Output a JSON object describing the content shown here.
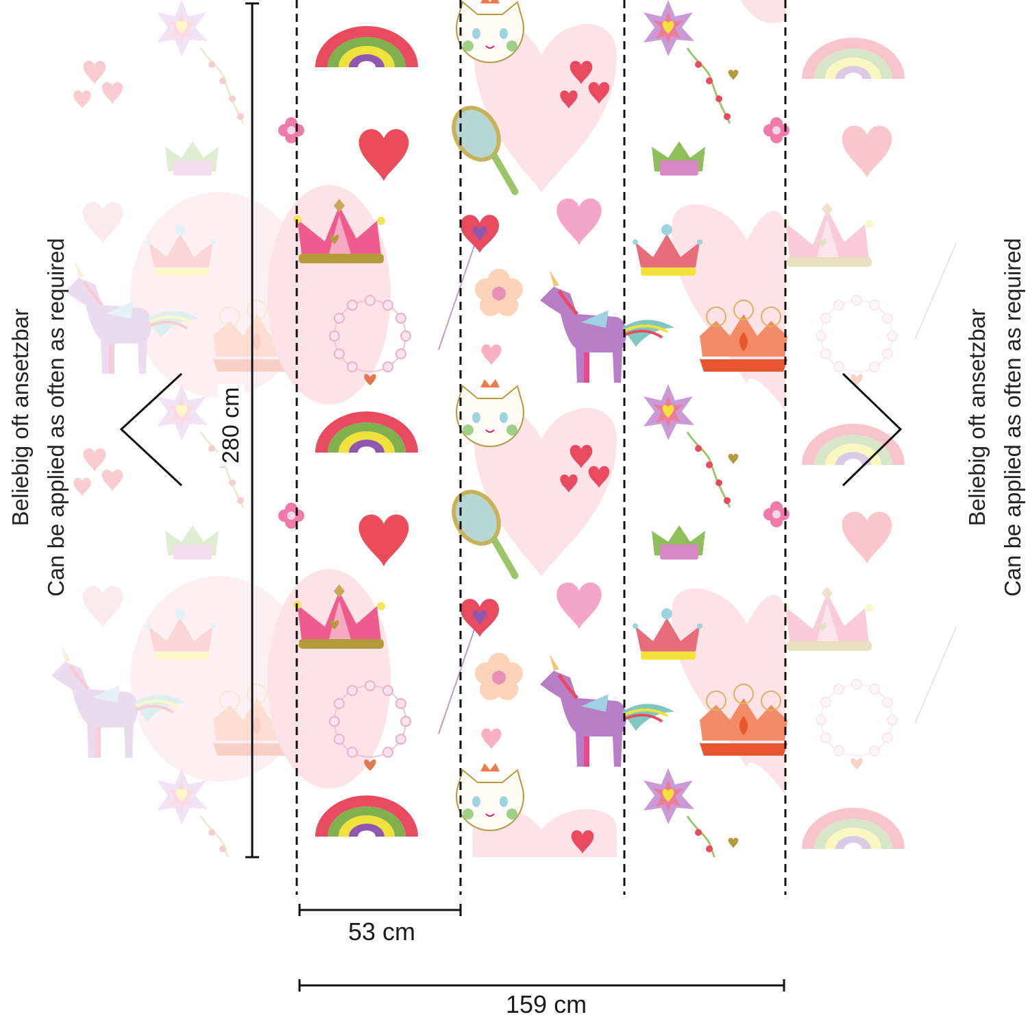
{
  "dimensions": {
    "height": "280 cm",
    "panel_width": "53 cm",
    "total_width": "159 cm"
  },
  "repeat_note": {
    "de": "Beliebig oft ansetzbar",
    "en": "Can be applied as often as required"
  },
  "panels_count": 3,
  "icons": [
    "rainbow-icon",
    "heart-icon",
    "crown-icon",
    "flower-icon",
    "pearl-necklace-icon",
    "cat-face-icon",
    "hand-mirror-icon",
    "heart-wand-icon",
    "unicorn-icon",
    "star-wand-icon",
    "tiara-icon"
  ],
  "colors": {
    "background": "#ffffff",
    "line": "#111111",
    "heart_red": "#ea4c5c",
    "pink": "#f06a99",
    "light_pink": "#fde3e8",
    "gold": "#b39a3a",
    "purple": "#9b59b6",
    "green": "#8fbf5a",
    "yellow": "#f3e23a",
    "orange": "#f07a4a"
  }
}
